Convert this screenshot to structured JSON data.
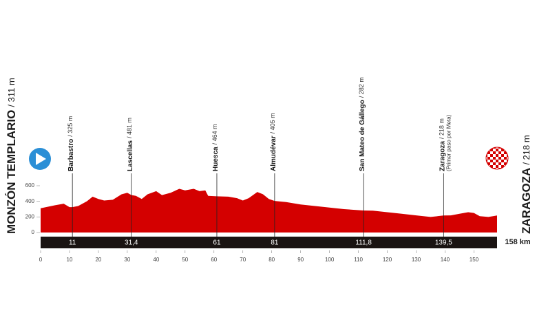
{
  "chart_data": {
    "type": "area",
    "color": "#d40000",
    "bar_color": "#1a1412",
    "x": [
      0,
      5,
      8,
      10,
      11,
      13,
      16,
      18,
      20,
      22,
      25,
      28,
      30,
      31.4,
      33,
      35,
      37,
      40,
      42,
      45,
      48,
      50,
      53,
      55,
      57,
      58,
      61,
      65,
      68,
      70,
      72,
      75,
      77,
      79,
      81,
      85,
      90,
      95,
      100,
      105,
      111.8,
      115,
      120,
      125,
      130,
      135,
      139.5,
      142,
      145,
      148,
      150,
      152,
      155,
      158
    ],
    "values": [
      311,
      350,
      370,
      325,
      325,
      340,
      400,
      460,
      430,
      410,
      420,
      490,
      510,
      481,
      470,
      430,
      490,
      530,
      480,
      510,
      560,
      540,
      560,
      530,
      540,
      470,
      464,
      460,
      440,
      410,
      440,
      520,
      490,
      430,
      405,
      390,
      360,
      340,
      320,
      300,
      282,
      280,
      260,
      240,
      220,
      200,
      218,
      220,
      240,
      260,
      250,
      210,
      200,
      218
    ],
    "xlim": [
      0,
      158
    ],
    "ylim": [
      0,
      600
    ],
    "xticks": [
      0,
      10,
      20,
      30,
      40,
      50,
      60,
      70,
      80,
      90,
      100,
      110,
      120,
      130,
      140,
      150
    ],
    "yticks": [
      0,
      200,
      400,
      600
    ],
    "start": {
      "name": "MONZÓN TEMPLARIO",
      "elevation": "/ 311 m"
    },
    "finish": {
      "name": "ZARAGOZA",
      "elevation": "/ 218 m",
      "distance": "158 km"
    },
    "waypoints": [
      {
        "name": "Barbastro",
        "elevation": "/ 325 m",
        "km": {
          "value": 11,
          "label": "11"
        }
      },
      {
        "name": "Lascellas",
        "elevation": "/ 481 m",
        "km": {
          "value": 31.4,
          "label": "31,4"
        }
      },
      {
        "name": "Huesca",
        "elevation": "/ 464 m",
        "km": {
          "value": 61,
          "label": "61"
        }
      },
      {
        "name": "Almudévar",
        "elevation": "/ 405 m",
        "km": {
          "value": 81,
          "label": "81"
        }
      },
      {
        "name": "San Mateo de Gállego",
        "elevation": "/ 282 m",
        "km": {
          "value": 111.8,
          "label": "111,8"
        }
      },
      {
        "name": "Zaragoza",
        "elevation": "/ 218 m",
        "note": "(Primer paso por Meta)",
        "km": {
          "value": 139.5,
          "label": "139,5"
        }
      }
    ]
  }
}
